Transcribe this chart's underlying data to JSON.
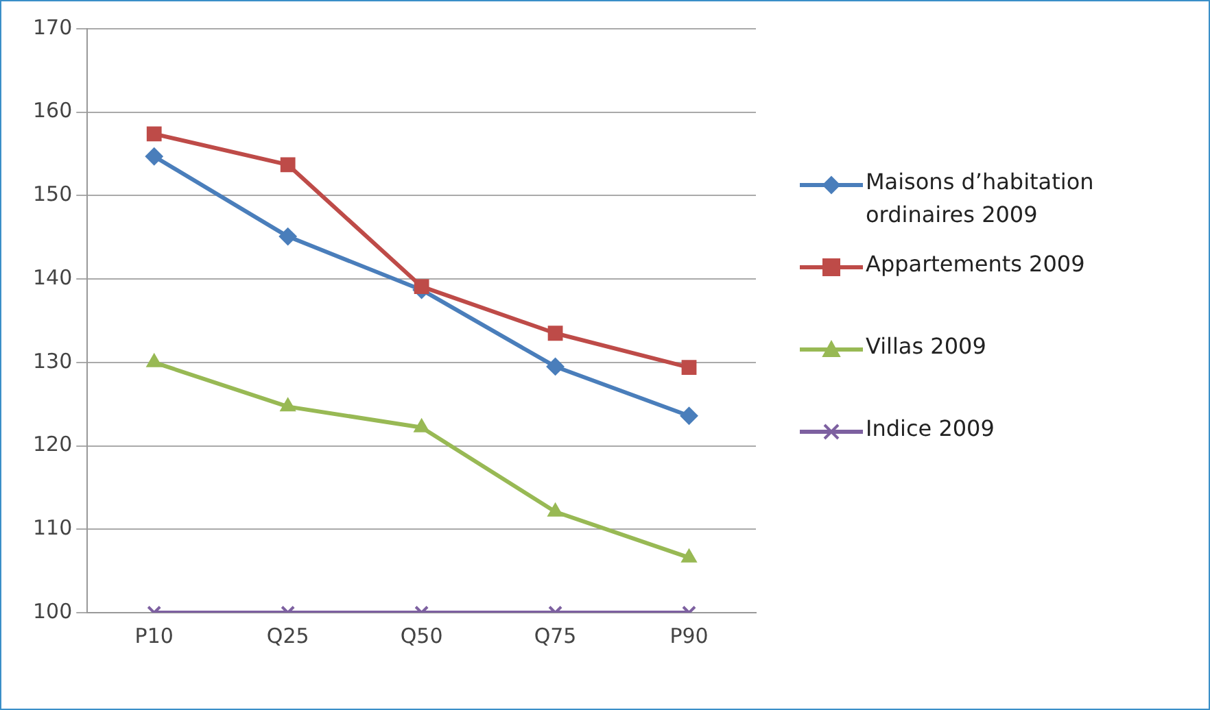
{
  "chart_data": {
    "type": "line",
    "categories": [
      "P10",
      "Q25",
      "Q50",
      "Q75",
      "P90"
    ],
    "series": [
      {
        "name": "Maisons d’habitation ordinaires 2009",
        "color": "#4a7ebb",
        "marker": "diamond",
        "values": [
          154.7,
          145.1,
          138.7,
          129.5,
          123.6
        ]
      },
      {
        "name": "Appartements 2009",
        "color": "#be4b48",
        "marker": "square",
        "values": [
          157.4,
          153.7,
          139.1,
          133.5,
          129.4
        ]
      },
      {
        "name": "Villas 2009",
        "color": "#98b954",
        "marker": "triangle",
        "values": [
          130.0,
          124.7,
          122.2,
          112.1,
          106.6
        ]
      },
      {
        "name": "Indice 2009",
        "color": "#7d60a0",
        "marker": "cross",
        "values": [
          100,
          100,
          100,
          100,
          100
        ]
      }
    ],
    "ylim": [
      100,
      170
    ],
    "yticks": [
      100,
      110,
      120,
      130,
      140,
      150,
      160,
      170
    ],
    "grid": "y",
    "legend": "right",
    "line_style": "solid"
  }
}
